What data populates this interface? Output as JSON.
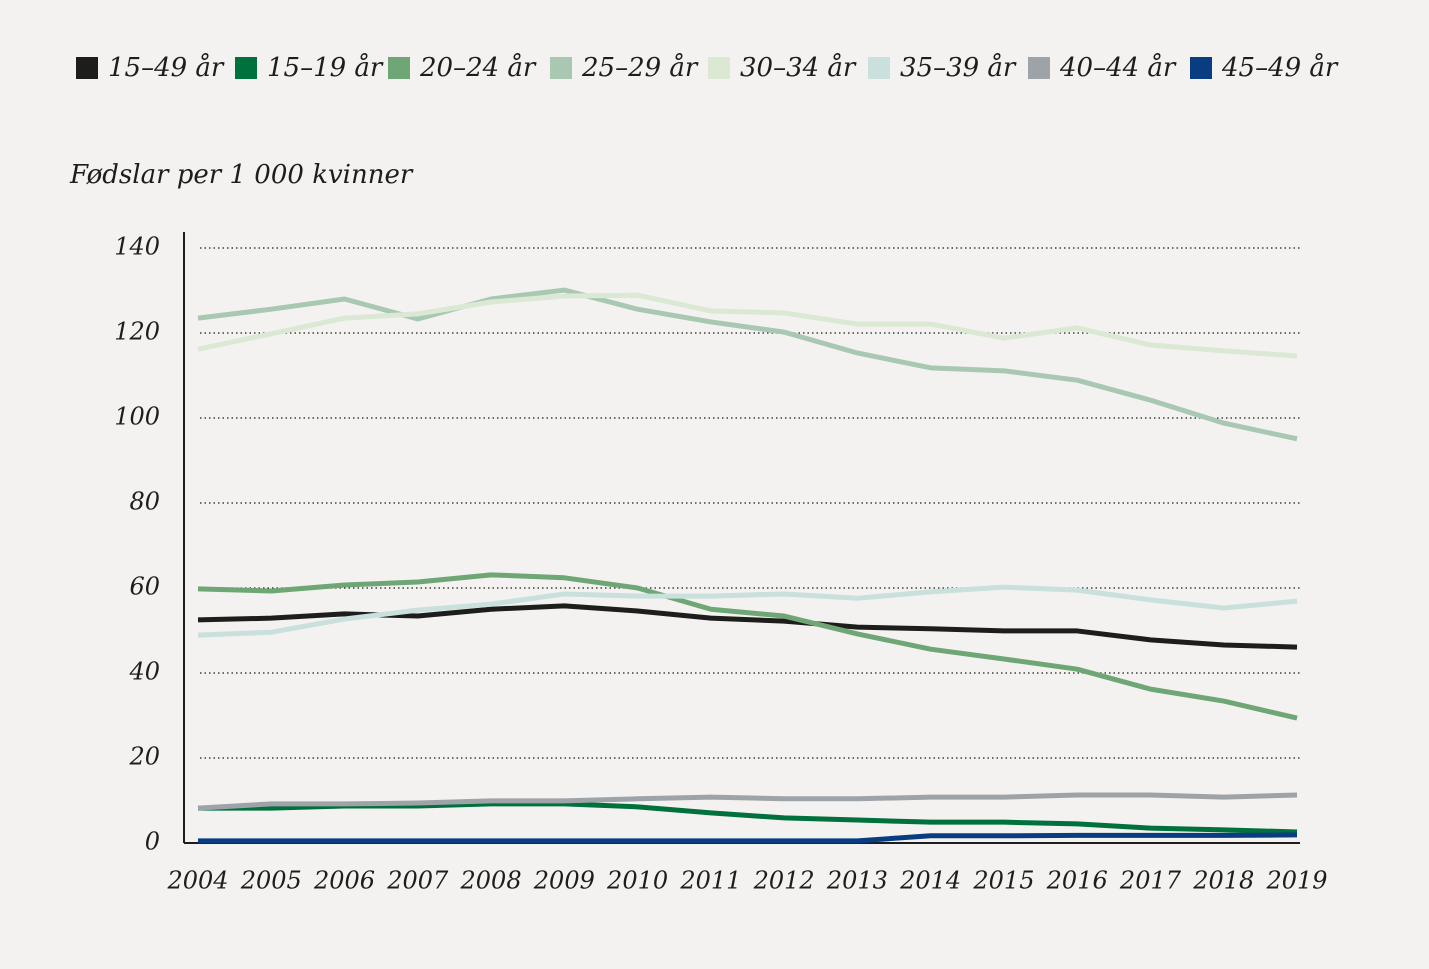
{
  "chart_data": {
    "type": "line",
    "y_label": "Fødslar per 1 000 kvinner",
    "categories": [
      "2004",
      "2005",
      "2006",
      "2007",
      "2008",
      "2009",
      "2010",
      "2011",
      "2012",
      "2013",
      "2014",
      "2015",
      "2016",
      "2017",
      "2018",
      "2019"
    ],
    "series": [
      {
        "name": "15–49 år",
        "color": "#1d1d1b",
        "values": [
          52.5,
          52.9,
          53.9,
          53.4,
          55.0,
          55.8,
          54.6,
          52.9,
          52.2,
          50.8,
          50.4,
          49.9,
          49.9,
          47.8,
          46.6,
          46.1
        ]
      },
      {
        "name": "15–19 år",
        "color": "#00703c",
        "values": [
          8.2,
          8.2,
          8.7,
          8.7,
          9.2,
          9.2,
          8.5,
          7.1,
          5.9,
          5.4,
          4.9,
          4.9,
          4.5,
          3.5,
          3.1,
          2.6
        ]
      },
      {
        "name": "20–24 år",
        "color": "#6fa675",
        "values": [
          59.8,
          59.3,
          60.7,
          61.4,
          63.1,
          62.4,
          60.0,
          55.0,
          53.4,
          49.2,
          45.6,
          43.3,
          40.9,
          36.2,
          33.4,
          29.4
        ]
      },
      {
        "name": "25–29 år",
        "color": "#a8c8b2",
        "values": [
          123.5,
          125.6,
          128.0,
          123.3,
          128.0,
          130.1,
          125.6,
          122.6,
          120.2,
          115.3,
          111.8,
          111.1,
          108.9,
          104.2,
          98.8,
          95.1
        ]
      },
      {
        "name": "30–34 år",
        "color": "#dbe8d4",
        "values": [
          116.2,
          119.8,
          123.5,
          124.5,
          127.3,
          128.7,
          128.9,
          125.2,
          124.7,
          122.1,
          122.1,
          118.8,
          121.2,
          117.2,
          115.8,
          114.6
        ]
      },
      {
        "name": "35–39 år",
        "color": "#c9e0dc",
        "values": [
          48.9,
          49.6,
          52.7,
          54.8,
          56.2,
          58.6,
          58.1,
          58.1,
          58.6,
          57.6,
          59.1,
          60.2,
          59.5,
          57.2,
          55.3,
          56.9
        ]
      },
      {
        "name": "40–44 år",
        "color": "#9ea3a8",
        "values": [
          8.2,
          9.2,
          9.2,
          9.4,
          9.9,
          9.9,
          10.4,
          10.8,
          10.4,
          10.4,
          10.8,
          10.8,
          11.3,
          11.3,
          10.8,
          11.3
        ]
      },
      {
        "name": "45–49 år",
        "color": "#083d82",
        "values": [
          0.5,
          0.5,
          0.5,
          0.5,
          0.5,
          0.5,
          0.5,
          0.5,
          0.5,
          0.5,
          1.7,
          1.7,
          1.8,
          1.8,
          1.8,
          1.9
        ]
      }
    ],
    "ylim": [
      0,
      140
    ],
    "yticks": [
      0,
      20,
      40,
      60,
      80,
      100,
      120,
      140
    ],
    "grid": true
  }
}
